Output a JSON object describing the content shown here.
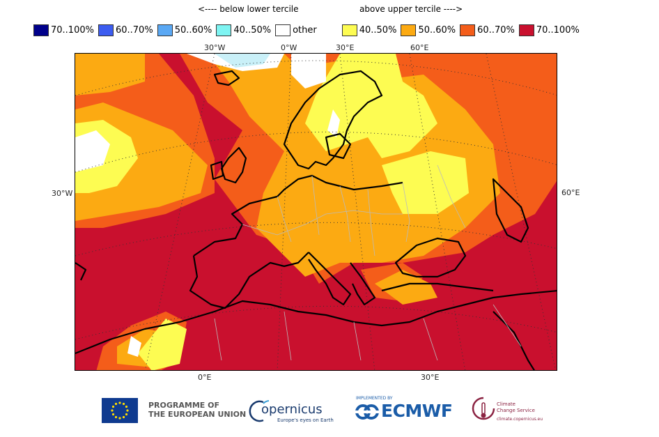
{
  "header": {
    "below": "<---- below lower tercile",
    "above": "above upper tercile ---->"
  },
  "legend": [
    {
      "label": "70..100%",
      "color": "#00008b"
    },
    {
      "label": "60..70%",
      "color": "#3c5cf0"
    },
    {
      "label": "50..60%",
      "color": "#5aa8f4"
    },
    {
      "label": "40..50%",
      "color": "#7ef4f2"
    },
    {
      "label": "other",
      "color": "#ffffff"
    },
    {
      "label": "40..50%",
      "color": "#fdfc52"
    },
    {
      "label": "50..60%",
      "color": "#fcaa12"
    },
    {
      "label": "60..70%",
      "color": "#f45d1a"
    },
    {
      "label": "70..100%",
      "color": "#c9102e"
    }
  ],
  "axis_labels": {
    "top": [
      "30°W",
      "0°W",
      "30°E",
      "60°E"
    ],
    "left": "30°W",
    "right": "60°E",
    "bottom": [
      "0°E",
      "30°E"
    ]
  },
  "footer": {
    "eu_line1": "PROGRAMME OF",
    "eu_line2": "THE EUROPEAN UNION",
    "copernicus": "opernicus",
    "copernicus_tag": "Europe's eyes on Earth",
    "ecmwf_impl": "IMPLEMENTED BY",
    "ecmwf": "ECMWF",
    "c3s_line1": "Climate",
    "c3s_line2": "Change Service",
    "c3s_url": "climate.copernicus.eu"
  }
}
